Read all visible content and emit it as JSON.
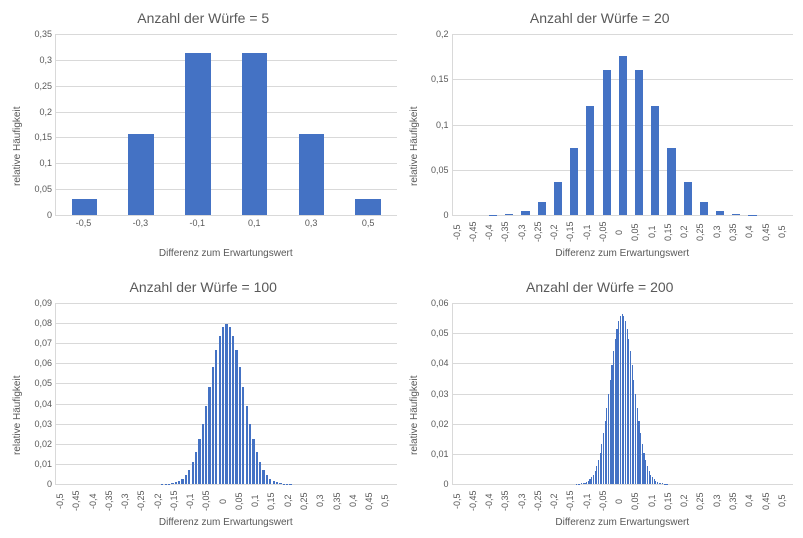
{
  "charts": [
    {
      "title": "Anzahl der Würfe = 5",
      "ylabel": "relative Häufigkeit",
      "xlabel": "Differenz zum Erwartungswert",
      "ymax": 0.35,
      "ytick_step": 0.05,
      "ytick_decimals": 2,
      "bar_color": "#4472c4",
      "bar_width_pct": 45,
      "grid_color": "#d9d9d9",
      "xtick_rotated": false,
      "categories": [
        "-0,5",
        "-0,3",
        "-0,1",
        "0,1",
        "0,3",
        "0,5"
      ],
      "values": [
        0.03125,
        0.15625,
        0.3125,
        0.3125,
        0.15625,
        0.03125
      ]
    },
    {
      "title": "Anzahl der Würfe = 20",
      "ylabel": "relative Häufigkeit",
      "xlabel": "Differenz zum Erwartungswert",
      "ymax": 0.2,
      "ytick_step": 0.05,
      "ytick_decimals": 2,
      "bar_color": "#4472c4",
      "bar_width_pct": 50,
      "grid_color": "#d9d9d9",
      "xtick_rotated": true,
      "categories": [
        "-0,5",
        "-0,45",
        "-0,4",
        "-0,35",
        "-0,3",
        "-0,25",
        "-0,2",
        "-0,15",
        "-0,1",
        "-0,05",
        "0",
        "0,05",
        "0,1",
        "0,15",
        "0,2",
        "0,25",
        "0,3",
        "0,35",
        "0,4",
        "0,45",
        "0,5"
      ],
      "values": [
        1e-06,
        1.91e-05,
        0.0001812,
        0.0010872,
        0.0046206,
        0.0147858,
        0.0369644,
        0.0739288,
        0.1201344,
        0.1601791,
        0.1761971,
        0.1601791,
        0.1201344,
        0.0739288,
        0.0369644,
        0.0147858,
        0.0046206,
        0.0010872,
        0.0001812,
        1.91e-05,
        1e-06
      ]
    },
    {
      "title": "Anzahl der Würfe = 100",
      "ylabel": "relative Häufigkeit",
      "xlabel": "Differenz zum Erwartungswert",
      "ymax": 0.09,
      "ytick_step": 0.01,
      "ytick_decimals": 2,
      "bar_color": "#4472c4",
      "bar_width_pct": 70,
      "grid_color": "#d9d9d9",
      "xtick_rotated": true,
      "categories": [
        "-0,5",
        "-0,45",
        "-0,4",
        "-0,35",
        "-0,3",
        "-0,25",
        "-0,2",
        "-0,15",
        "-0,1",
        "-0,05",
        "",
        "0,05",
        "0,1",
        "0,15",
        "0,2",
        "0,25",
        "0,3",
        "0,35",
        "0,4",
        "0,45",
        "0,5"
      ],
      "show_every_xtick": 5,
      "dense_values": [
        0,
        0,
        0,
        0,
        0,
        0,
        0,
        0,
        0,
        0,
        0,
        0,
        0,
        0,
        0,
        0,
        0,
        0,
        0,
        0,
        0,
        0,
        0,
        0,
        0,
        0,
        0,
        0,
        0,
        0,
        0,
        0,
        0,
        9e-05,
        0.00022,
        0.00052,
        0.00114,
        0.00234,
        0.00451,
        0.00817,
        0.01394,
        0.02244,
        0.03405,
        0.04873,
        0.06585,
        0.08394,
        0.07803,
        0.07803,
        0.07029,
        0.06585,
        0.04873,
        0.03405,
        0.02244,
        0.01394,
        0.00817,
        0.00451,
        0.00234,
        0.00114,
        0.00052,
        0.00022,
        9e-05,
        0,
        0,
        0,
        0,
        0,
        0,
        0,
        0,
        0,
        0,
        0,
        0,
        0,
        0,
        0,
        0,
        0,
        0,
        0,
        0,
        0,
        0,
        0,
        0,
        0,
        0,
        0,
        0,
        0,
        0,
        0,
        0,
        0,
        0,
        0,
        0,
        0,
        0,
        0,
        0
      ],
      "n": 100
    },
    {
      "title": "Anzahl der Würfe = 200",
      "ylabel": "relative Häufigkeit",
      "xlabel": "Differenz zum Erwartungswert",
      "ymax": 0.06,
      "ytick_step": 0.01,
      "ytick_decimals": 2,
      "bar_color": "#4472c4",
      "bar_width_pct": 70,
      "grid_color": "#d9d9d9",
      "xtick_rotated": true,
      "categories": [
        "-0,5",
        "-0,45",
        "-0,4",
        "-0,35",
        "-0,3",
        "-0,25",
        "-0,2",
        "-0,15",
        "-0,1",
        "-0,05",
        "0",
        "0,05",
        "0,1",
        "0,15",
        "0,2",
        "0,25",
        "0,3",
        "0,35",
        "0,4",
        "0,45",
        "0,5"
      ],
      "n": 200
    }
  ],
  "background": "#ffffff",
  "text_color": "#595959"
}
